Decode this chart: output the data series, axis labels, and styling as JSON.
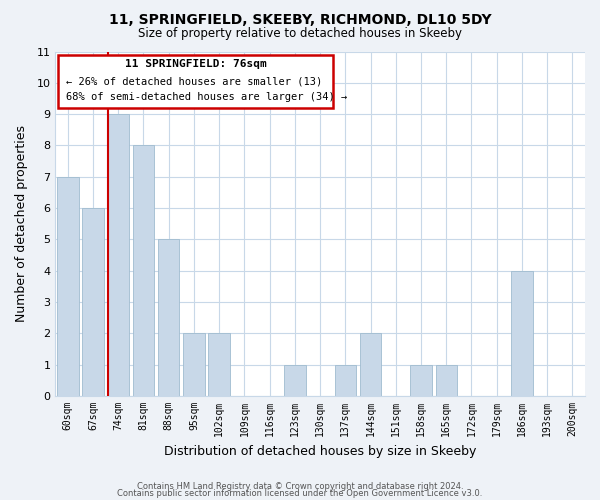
{
  "title": "11, SPRINGFIELD, SKEEBY, RICHMOND, DL10 5DY",
  "subtitle": "Size of property relative to detached houses in Skeeby",
  "xlabel": "Distribution of detached houses by size in Skeeby",
  "ylabel": "Number of detached properties",
  "footer1": "Contains HM Land Registry data © Crown copyright and database right 2024.",
  "footer2": "Contains public sector information licensed under the Open Government Licence v3.0.",
  "categories": [
    "60sqm",
    "67sqm",
    "74sqm",
    "81sqm",
    "88sqm",
    "95sqm",
    "102sqm",
    "109sqm",
    "116sqm",
    "123sqm",
    "130sqm",
    "137sqm",
    "144sqm",
    "151sqm",
    "158sqm",
    "165sqm",
    "172sqm",
    "179sqm",
    "186sqm",
    "193sqm",
    "200sqm"
  ],
  "values": [
    7,
    6,
    9,
    8,
    5,
    2,
    2,
    0,
    0,
    1,
    0,
    1,
    2,
    0,
    1,
    1,
    0,
    0,
    4,
    0,
    0
  ],
  "bar_color": "#c8d8e8",
  "bar_edge_color": "#a0bcd0",
  "red_line_index": 2,
  "annotation_title": "11 SPRINGFIELD: 76sqm",
  "annotation_line1": "← 26% of detached houses are smaller (13)",
  "annotation_line2": "68% of semi-detached houses are larger (34) →",
  "annotation_box_color": "#ffffff",
  "annotation_box_edge": "#cc0000",
  "ylim": [
    0,
    11
  ],
  "yticks": [
    0,
    1,
    2,
    3,
    4,
    5,
    6,
    7,
    8,
    9,
    10,
    11
  ],
  "background_color": "#eef2f7",
  "plot_background": "#ffffff",
  "grid_color": "#c8d8e8"
}
